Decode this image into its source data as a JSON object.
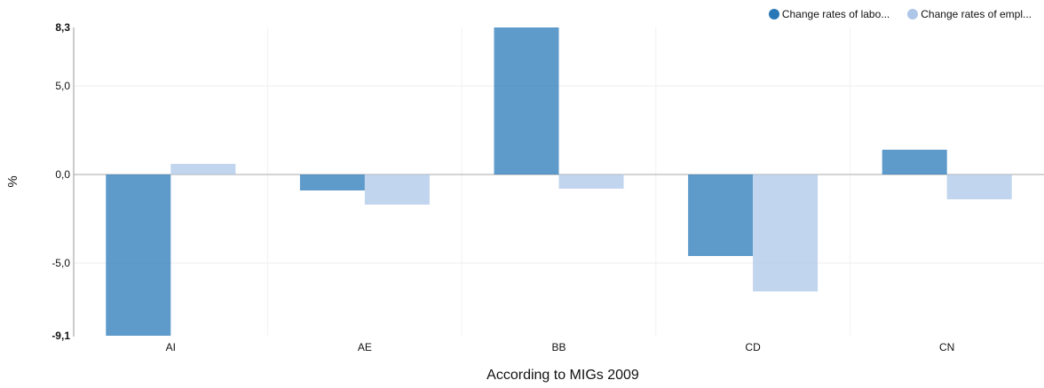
{
  "chart_data": {
    "type": "bar",
    "categories": [
      "AI",
      "AE",
      "BB",
      "CD",
      "CN"
    ],
    "series": [
      {
        "name": "Change rates of labo...",
        "color": "#2878b8",
        "values": [
          -9.1,
          -0.9,
          8.3,
          -4.6,
          1.4
        ]
      },
      {
        "name": "Change rates of empl...",
        "color": "#aec7e8",
        "values": [
          0.6,
          -1.7,
          -0.8,
          -6.6,
          -1.4
        ]
      }
    ],
    "ylabel": "%",
    "xlabel": "According to MIGs 2009",
    "ylim": [
      -9.1,
      8.3
    ],
    "yticks": [
      -9.1,
      -5.0,
      0.0,
      5.0,
      8.3
    ],
    "ytick_labels": [
      "-9,1",
      "-5,0",
      "0,0",
      "5,0",
      "8,3"
    ],
    "bold_ticks": [
      "-9,1",
      "8,3"
    ],
    "grid": true,
    "legend_position": "top-right"
  }
}
